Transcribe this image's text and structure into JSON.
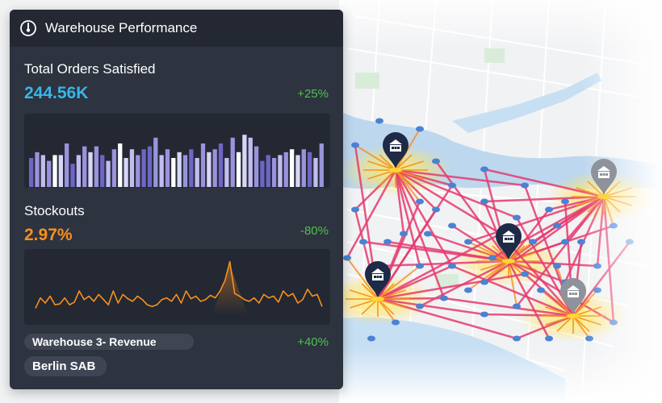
{
  "panel": {
    "title": "Warehouse Performance",
    "icon": "gauge-icon"
  },
  "orders": {
    "label": "Total Orders Satisfied",
    "value": "244.56K",
    "change": "+25%",
    "value_color": "#38b6e8",
    "change_color": "#4fc04f"
  },
  "stockouts": {
    "label": "Stockouts",
    "value": "2.97%",
    "change": "-80%",
    "value_color": "#f7901e",
    "change_color": "#4fc04f"
  },
  "revenue": {
    "label": "Warehouse 3- Revenue",
    "change": "+40%",
    "change_color": "#4fc04f"
  },
  "location": {
    "name": "Berlin SAB"
  },
  "chart_data": [
    {
      "type": "bar",
      "values": [
        10,
        12,
        11,
        9,
        11,
        11,
        15,
        8,
        11,
        14,
        12,
        14,
        11,
        9,
        13,
        15,
        10,
        13,
        11,
        13,
        14,
        17,
        11,
        13,
        10,
        12,
        11,
        13,
        10,
        15,
        12,
        13,
        15,
        10,
        17,
        12,
        18,
        17,
        14,
        9,
        11,
        10,
        11,
        12,
        13,
        11,
        13,
        12,
        10,
        15
      ],
      "colors": [
        "#6e66c4",
        "#9a93dc",
        "#c2bdf0",
        "#ffffff",
        "#d8d6f6"
      ]
    },
    {
      "type": "line",
      "values": [
        8,
        20,
        14,
        22,
        12,
        13,
        20,
        12,
        15,
        28,
        18,
        22,
        16,
        24,
        18,
        12,
        28,
        14,
        24,
        19,
        16,
        22,
        18,
        12,
        10,
        12,
        18,
        20,
        16,
        24,
        14,
        28,
        19,
        22,
        16,
        18,
        23,
        20,
        28,
        40,
        62,
        25,
        22,
        18,
        16,
        20,
        14,
        24,
        20,
        22,
        15,
        28,
        22,
        25,
        14,
        18,
        30,
        22,
        24,
        10
      ],
      "color": "#f7901e"
    }
  ],
  "map": {
    "water_color": "#bcd7ee",
    "land_color": "#f1f2f4",
    "route_color": "#e53a6d",
    "short_route_color": "#f59424",
    "warehouse_icon": "warehouse-marker-icon"
  }
}
